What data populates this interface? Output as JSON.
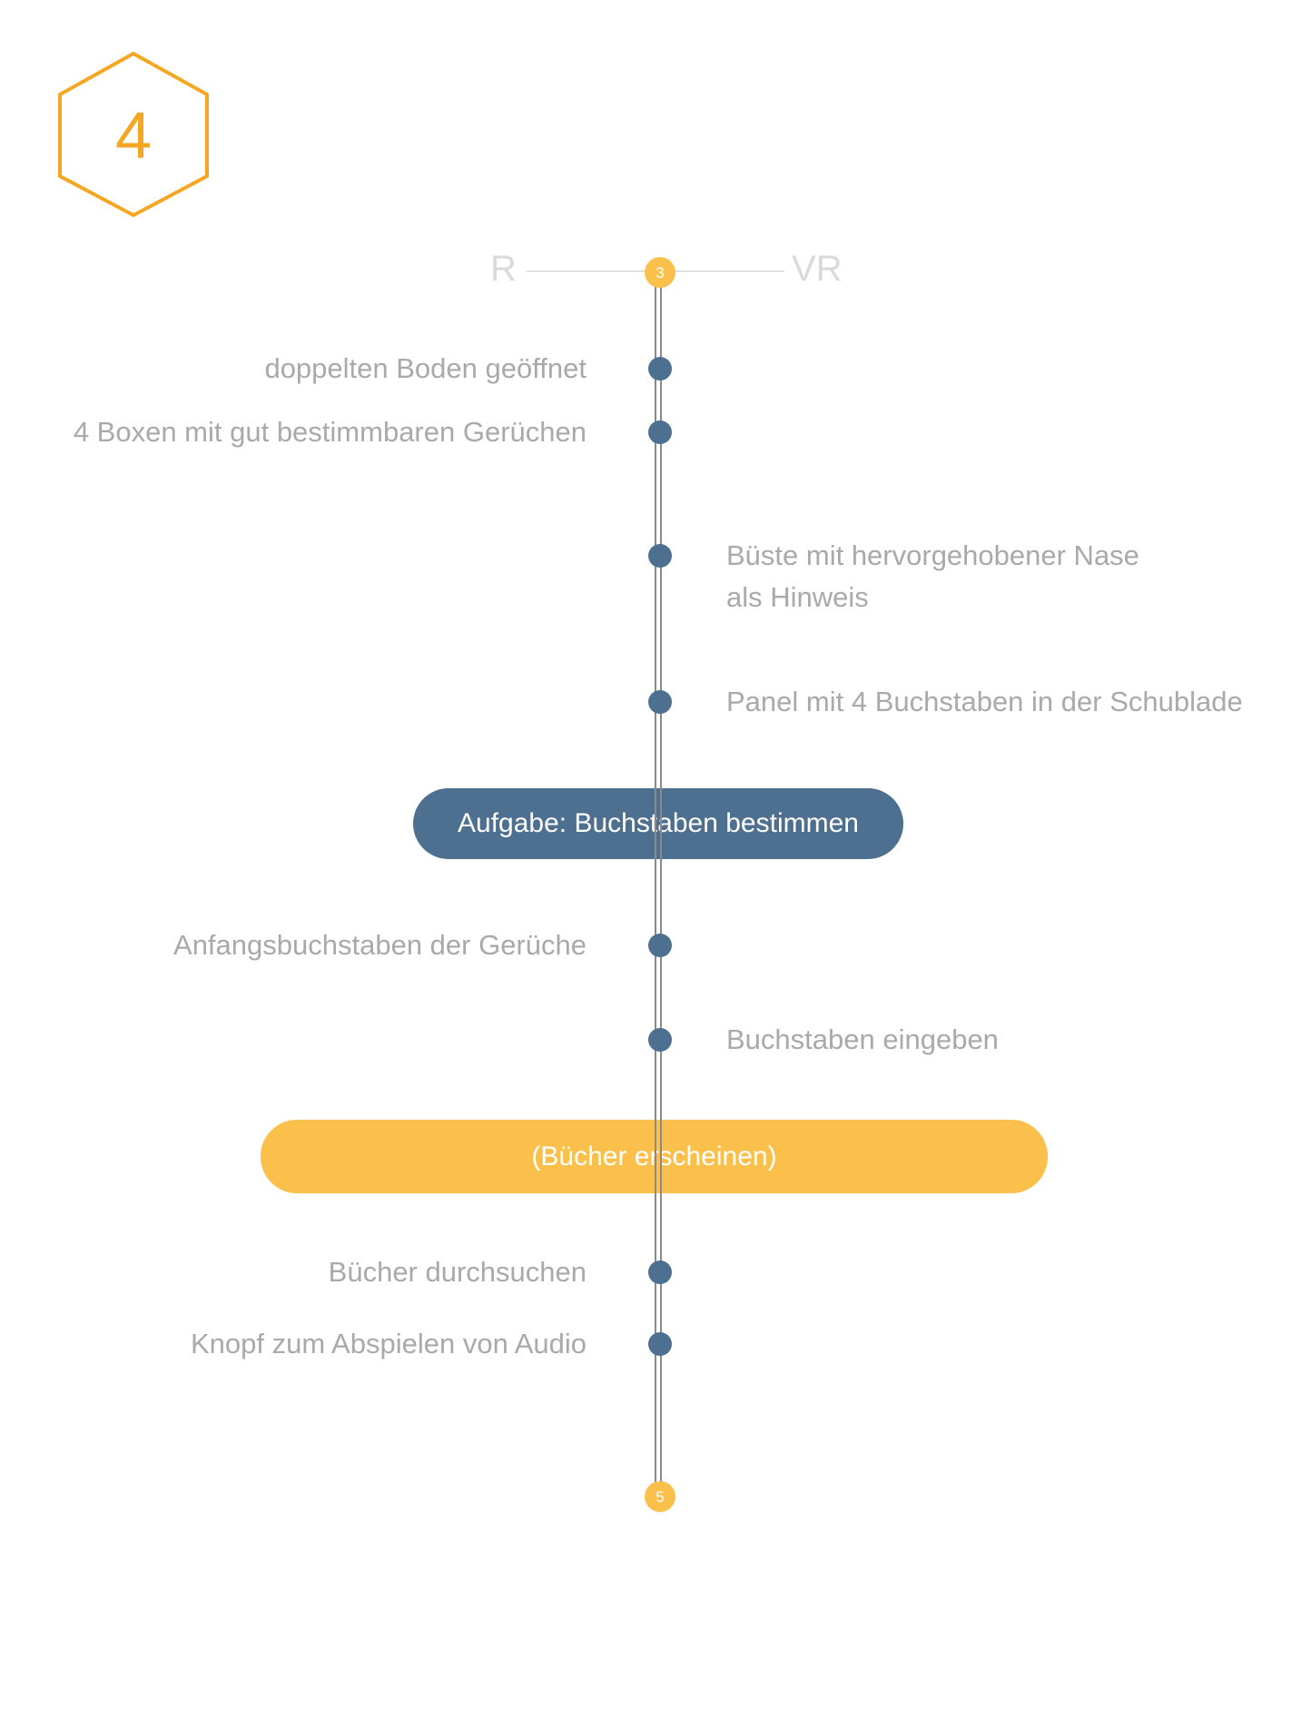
{
  "badge": {
    "number": "4"
  },
  "axis": {
    "left_label": "R",
    "right_label": "VR"
  },
  "stations": {
    "start": "3",
    "end": "5"
  },
  "events": {
    "e1": "doppelten Boden geöffnet",
    "e2": "4 Boxen mit gut bestimmbaren Gerüchen",
    "e3_line1": "Büste mit hervorgehobener Nase",
    "e3_line2": "als Hinweis",
    "e4": "Panel mit 4 Buchstaben in der Schublade",
    "e5": "Anfangsbuchstaben der Gerüche",
    "e6": "Buchstaben eingeben",
    "e7": "Bücher durchsuchen",
    "e8": "Knopf zum  Abspielen von Audio"
  },
  "pills": {
    "task": "Aufgabe: Buchstaben bestimmen",
    "books": "(Bücher erscheinen)"
  },
  "colors": {
    "accent_yellow": "#fbc04b",
    "hexagon_orange": "#f5a623",
    "node_blue": "#4d6f90",
    "label_gray": "#a9a9a9"
  }
}
